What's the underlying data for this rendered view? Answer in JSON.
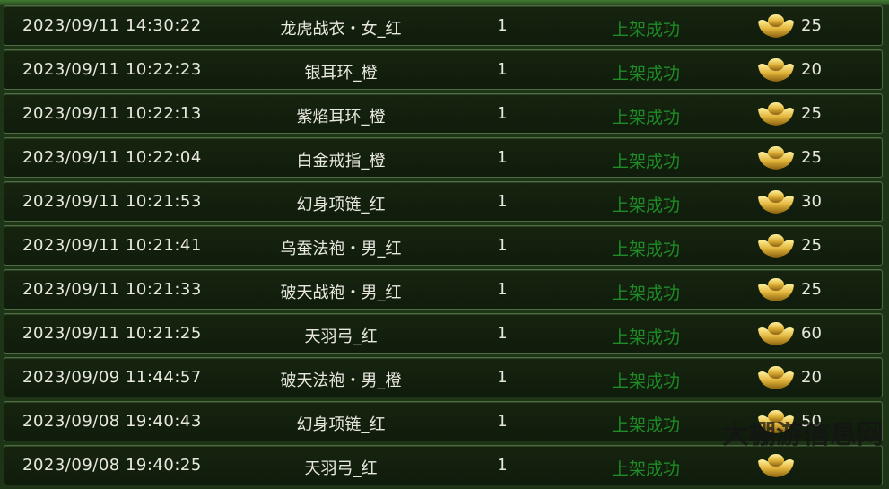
{
  "rows": [
    {
      "time": "2023/09/11 14:30:22",
      "item": "龙虎战衣・女_红",
      "qty": "1",
      "status": "上架成功",
      "price": "25"
    },
    {
      "time": "2023/09/11 10:22:23",
      "item": "银耳环_橙",
      "qty": "1",
      "status": "上架成功",
      "price": "20"
    },
    {
      "time": "2023/09/11 10:22:13",
      "item": "紫焰耳环_橙",
      "qty": "1",
      "status": "上架成功",
      "price": "25"
    },
    {
      "time": "2023/09/11 10:22:04",
      "item": "白金戒指_橙",
      "qty": "1",
      "status": "上架成功",
      "price": "25"
    },
    {
      "time": "2023/09/11 10:21:53",
      "item": "幻身项链_红",
      "qty": "1",
      "status": "上架成功",
      "price": "30"
    },
    {
      "time": "2023/09/11 10:21:41",
      "item": "乌蚕法袍・男_红",
      "qty": "1",
      "status": "上架成功",
      "price": "25"
    },
    {
      "time": "2023/09/11 10:21:33",
      "item": "破天战袍・男_红",
      "qty": "1",
      "status": "上架成功",
      "price": "25"
    },
    {
      "time": "2023/09/11 10:21:25",
      "item": "天羽弓_红",
      "qty": "1",
      "status": "上架成功",
      "price": "60"
    },
    {
      "time": "2023/09/09 11:44:57",
      "item": "破天法袍・男_橙",
      "qty": "1",
      "status": "上架成功",
      "price": "20"
    },
    {
      "time": "2023/09/08 19:40:43",
      "item": "幻身项链_红",
      "qty": "1",
      "status": "上架成功",
      "price": "50"
    },
    {
      "time": "2023/09/08 19:40:25",
      "item": "天羽弓_红",
      "qty": "1",
      "status": "上架成功",
      "price": ""
    }
  ],
  "icons": {
    "currency": "gold-ingot-icon"
  },
  "colors": {
    "status": "#1f8a26",
    "text": "#e8e8e0",
    "row_bg": "#13200e",
    "border": "#4d6d40"
  },
  "watermark": "大棚游信息网"
}
